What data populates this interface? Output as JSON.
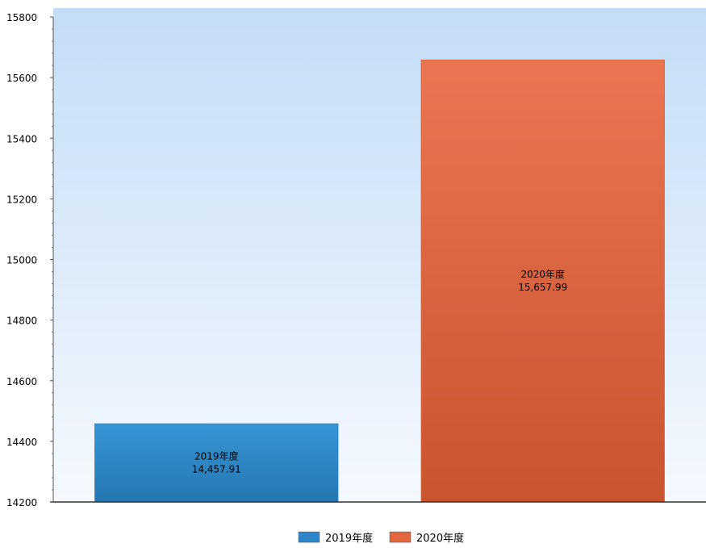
{
  "chart_data": {
    "type": "bar",
    "title": "",
    "xlabel": "",
    "ylabel": "",
    "categories": [
      "2019年度",
      "2020年度"
    ],
    "values": [
      14457.91,
      15657.99
    ],
    "value_labels": [
      "14,457.91",
      "15,657.99"
    ],
    "colors": [
      "#2e86c8",
      "#e2663f"
    ],
    "ylim": [
      14200,
      15800
    ],
    "yticks": [
      14200,
      14400,
      14600,
      14800,
      15000,
      15200,
      15400,
      15600,
      15800
    ],
    "ytick_labels": [
      "14200",
      "14400",
      "14600",
      "14800",
      "15000",
      "15200",
      "15400",
      "15600",
      "15800"
    ],
    "grid": false,
    "legend": {
      "position": "bottom",
      "entries": [
        "2019年度",
        "2020年度"
      ]
    }
  }
}
